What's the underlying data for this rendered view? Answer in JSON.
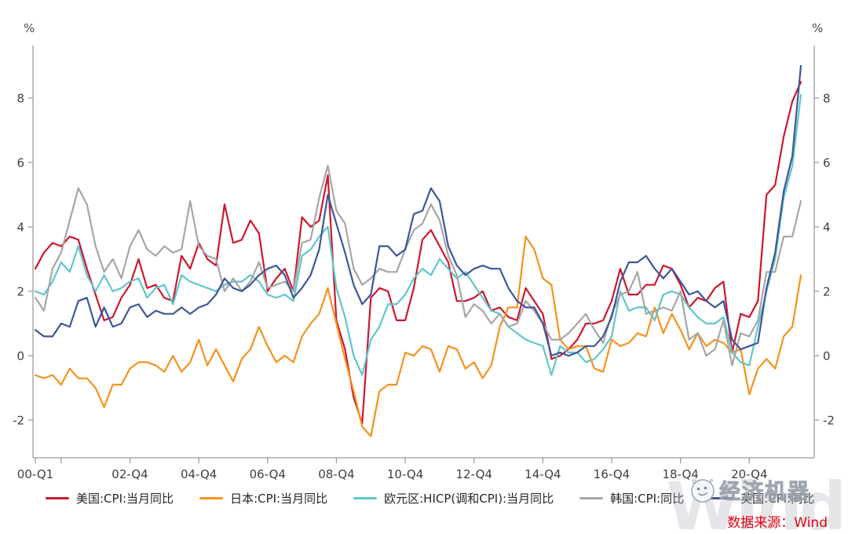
{
  "page": {
    "source_note": "数据来源：Wind",
    "source_color": "#E60012",
    "watermark_text": "经济机器",
    "watermark_logo": "wechat-account-face-logo",
    "watermark_bg": "Wind"
  },
  "chart_data": {
    "type": "line",
    "title": "",
    "unit_left": "%",
    "unit_right": "%",
    "x_start": "2000-Q1",
    "x_end": "2022-Q2",
    "x_frequency": "quarterly",
    "grid": false,
    "legend_position": "bottom",
    "ylim": [
      -3.17,
      9.63
    ],
    "y_ticks": [
      -2,
      0,
      2,
      4,
      6,
      8
    ],
    "x_ticks": [
      {
        "label": "00-Q1",
        "q": 0
      },
      {
        "label": "",
        "q": 3
      },
      {
        "label": "02-Q4",
        "q": 11
      },
      {
        "label": "04-Q4",
        "q": 19
      },
      {
        "label": "06-Q4",
        "q": 27
      },
      {
        "label": "08-Q4",
        "q": 35
      },
      {
        "label": "10-Q4",
        "q": 43
      },
      {
        "label": "12-Q4",
        "q": 51
      },
      {
        "label": "14-Q4",
        "q": 59
      },
      {
        "label": "16-Q4",
        "q": 67
      },
      {
        "label": "18-Q4",
        "q": 75
      },
      {
        "label": "20-Q4",
        "q": 83
      }
    ],
    "series": [
      {
        "key": "us",
        "label": "美国:CPI:当月同比",
        "color": "#CD1730",
        "values": [
          2.7,
          3.2,
          3.5,
          3.4,
          3.7,
          3.6,
          2.7,
          1.9,
          1.1,
          1.2,
          1.8,
          2.2,
          3.0,
          2.1,
          2.2,
          1.8,
          1.7,
          3.1,
          2.7,
          3.5,
          3.0,
          2.8,
          4.7,
          3.5,
          3.6,
          4.2,
          3.8,
          2.0,
          2.4,
          2.7,
          2.0,
          4.3,
          4.0,
          4.2,
          5.6,
          1.1,
          0.2,
          -1.3,
          -2.1,
          1.8,
          2.1,
          2.0,
          1.1,
          1.1,
          2.1,
          3.6,
          3.9,
          3.4,
          2.9,
          1.7,
          1.7,
          1.8,
          2.0,
          1.4,
          1.5,
          1.2,
          1.1,
          2.1,
          1.7,
          1.3,
          -0.1,
          0.0,
          0.2,
          0.5,
          1.0,
          1.0,
          1.1,
          1.7,
          2.7,
          1.9,
          1.9,
          2.2,
          2.2,
          2.8,
          2.7,
          2.2,
          1.5,
          1.8,
          1.7,
          2.1,
          2.3,
          0.1,
          1.3,
          1.2,
          1.7,
          5.0,
          5.3,
          6.8,
          7.9,
          8.5
        ]
      },
      {
        "key": "japan",
        "label": "日本:CPI:当月同比",
        "color": "#F5921E",
        "values": [
          -0.6,
          -0.7,
          -0.6,
          -0.9,
          -0.4,
          -0.7,
          -0.7,
          -1.0,
          -1.6,
          -0.9,
          -0.9,
          -0.4,
          -0.2,
          -0.2,
          -0.3,
          -0.5,
          0.0,
          -0.5,
          -0.2,
          0.5,
          -0.3,
          0.2,
          -0.3,
          -0.8,
          -0.1,
          0.2,
          0.9,
          0.3,
          -0.2,
          0.0,
          -0.2,
          0.6,
          1.0,
          1.3,
          2.1,
          1.0,
          -0.1,
          -1.1,
          -2.2,
          -2.5,
          -1.1,
          -0.9,
          -0.9,
          0.1,
          0.0,
          0.3,
          0.2,
          -0.5,
          0.3,
          0.2,
          -0.4,
          -0.2,
          -0.7,
          -0.3,
          0.9,
          1.5,
          1.5,
          3.7,
          3.3,
          2.4,
          2.2,
          0.5,
          0.2,
          0.3,
          0.3,
          -0.4,
          -0.5,
          0.5,
          0.3,
          0.4,
          0.7,
          0.6,
          1.5,
          0.7,
          1.3,
          0.8,
          0.2,
          0.7,
          0.3,
          0.5,
          0.4,
          0.1,
          0.2,
          -1.2,
          -0.4,
          -0.1,
          -0.4,
          0.6,
          0.9,
          2.5
        ]
      },
      {
        "key": "eurozone",
        "label": "欧元区:HICP(调和CPI):当月同比",
        "color": "#5FC6C9",
        "values": [
          2.0,
          1.9,
          2.3,
          2.9,
          2.6,
          3.4,
          2.5,
          2.0,
          2.5,
          2.0,
          2.1,
          2.3,
          2.4,
          1.8,
          2.1,
          2.2,
          1.6,
          2.5,
          2.3,
          2.2,
          2.1,
          2.0,
          2.2,
          2.3,
          2.3,
          2.5,
          2.3,
          1.9,
          1.8,
          1.9,
          1.7,
          3.1,
          3.3,
          3.7,
          4.0,
          2.1,
          1.2,
          0.0,
          -0.6,
          0.5,
          0.9,
          1.6,
          1.6,
          1.9,
          2.4,
          2.7,
          2.5,
          3.0,
          2.7,
          2.4,
          2.6,
          2.2,
          1.8,
          1.4,
          1.3,
          0.9,
          0.7,
          0.5,
          0.4,
          0.3,
          -0.6,
          0.3,
          0.1,
          0.1,
          -0.2,
          -0.1,
          0.2,
          0.6,
          2.0,
          1.4,
          1.5,
          1.5,
          1.1,
          1.9,
          2.0,
          1.9,
          1.5,
          1.2,
          1.0,
          1.0,
          1.2,
          0.1,
          -0.2,
          -0.3,
          0.9,
          2.0,
          3.0,
          4.9,
          5.9,
          8.1
        ]
      },
      {
        "key": "korea",
        "label": "韩国:CPI:同比",
        "color": "#A6A6A6",
        "values": [
          1.8,
          1.4,
          2.7,
          3.2,
          4.2,
          5.2,
          4.7,
          3.4,
          2.6,
          3.0,
          2.4,
          3.4,
          3.9,
          3.3,
          3.1,
          3.4,
          3.2,
          3.3,
          4.8,
          3.4,
          3.1,
          3.0,
          2.0,
          2.4,
          2.0,
          2.3,
          2.9,
          2.1,
          2.2,
          2.3,
          2.0,
          3.5,
          3.6,
          4.9,
          5.9,
          4.5,
          4.1,
          2.7,
          2.2,
          2.4,
          2.7,
          2.6,
          2.6,
          3.3,
          3.9,
          4.1,
          4.7,
          4.2,
          3.1,
          2.5,
          1.2,
          1.6,
          1.4,
          1.0,
          1.3,
          0.9,
          1.0,
          1.7,
          1.4,
          1.0,
          0.5,
          0.5,
          0.7,
          1.0,
          1.3,
          0.8,
          0.4,
          1.3,
          1.9,
          2.0,
          2.6,
          1.3,
          1.4,
          1.5,
          1.4,
          2.0,
          0.5,
          0.7,
          0.0,
          0.2,
          1.1,
          -0.3,
          0.7,
          0.6,
          1.1,
          2.6,
          2.6,
          3.7,
          3.7,
          4.8
        ]
      },
      {
        "key": "uk",
        "label": "英国:CPI:同比",
        "color": "#3F5697",
        "values": [
          0.8,
          0.6,
          0.6,
          1.0,
          0.9,
          1.7,
          1.8,
          0.9,
          1.5,
          0.9,
          1.0,
          1.5,
          1.6,
          1.2,
          1.4,
          1.3,
          1.3,
          1.5,
          1.3,
          1.5,
          1.6,
          1.9,
          2.4,
          2.1,
          2.0,
          2.2,
          2.5,
          2.7,
          2.8,
          2.5,
          1.8,
          2.1,
          2.5,
          3.3,
          5.0,
          4.1,
          3.2,
          2.2,
          1.6,
          1.9,
          3.4,
          3.4,
          3.1,
          3.3,
          4.4,
          4.5,
          5.2,
          4.8,
          3.4,
          2.8,
          2.5,
          2.7,
          2.8,
          2.7,
          2.7,
          2.1,
          1.7,
          1.5,
          1.5,
          1.0,
          0.0,
          0.1,
          0.0,
          0.1,
          0.3,
          0.3,
          0.6,
          1.2,
          2.3,
          2.9,
          2.9,
          3.1,
          2.7,
          2.4,
          2.7,
          2.3,
          1.9,
          2.0,
          1.7,
          1.5,
          1.7,
          0.5,
          0.2,
          0.3,
          0.4,
          2.1,
          3.2,
          5.1,
          6.2,
          9.0
        ]
      }
    ]
  }
}
